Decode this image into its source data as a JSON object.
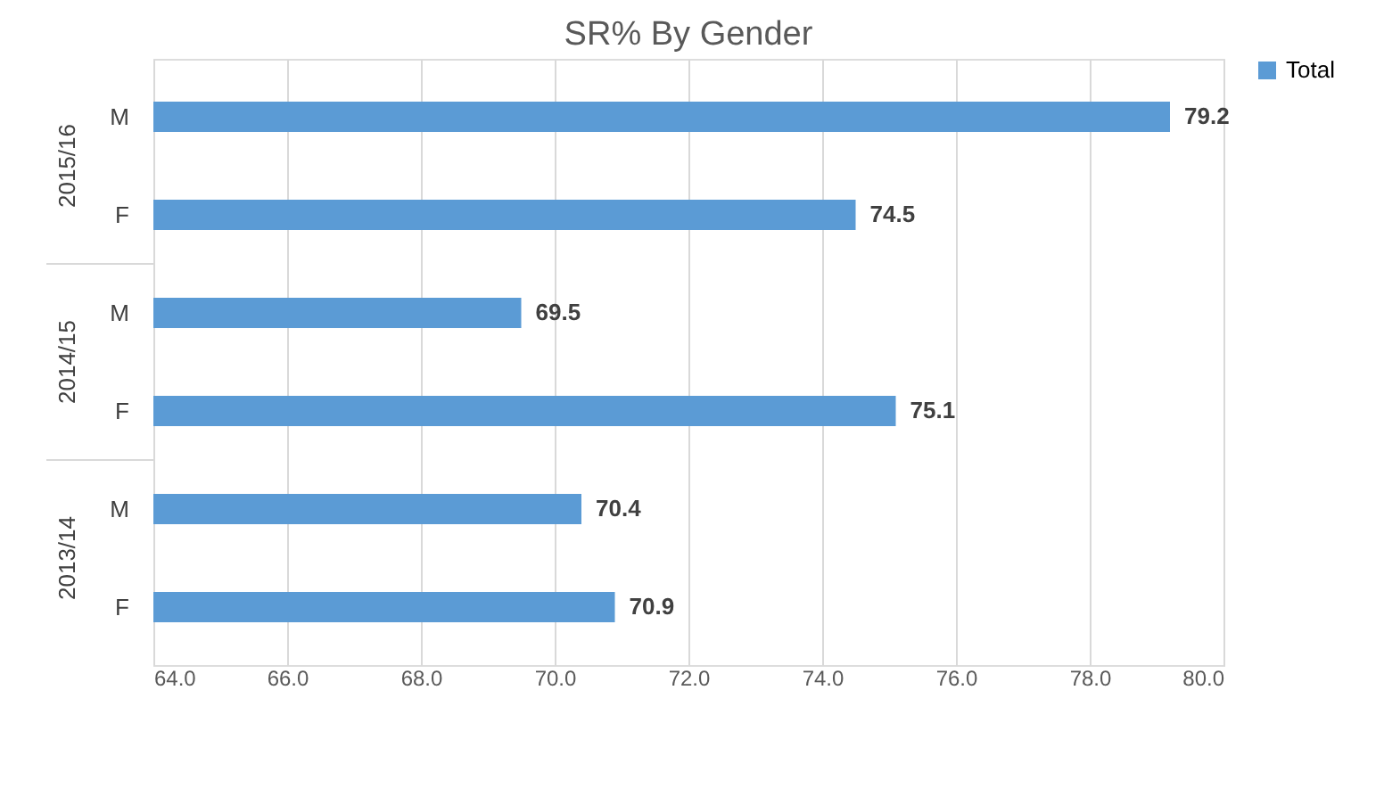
{
  "chart_data": {
    "type": "bar",
    "orientation": "horizontal",
    "title": "SR% By Gender",
    "categories": [
      "M",
      "F",
      "M",
      "F",
      "M",
      "F"
    ],
    "series": [
      {
        "name": "Total",
        "color": "#5b9bd5",
        "values": [
          79.2,
          74.5,
          69.5,
          75.1,
          70.4,
          70.9
        ]
      }
    ],
    "annotations": [
      "2015/16",
      "2014/15",
      "2013/14"
    ],
    "xlim": [
      64,
      80
    ],
    "xticks": [
      {
        "value": 64,
        "label": "64.0"
      },
      {
        "value": 66,
        "label": "66.0"
      },
      {
        "value": 68,
        "label": "68.0"
      },
      {
        "value": 70,
        "label": "70.0"
      },
      {
        "value": 72,
        "label": "72.0"
      },
      {
        "value": 74,
        "label": "74.0"
      },
      {
        "value": 76,
        "label": "76.0"
      },
      {
        "value": 78,
        "label": "78.0"
      },
      {
        "value": 80,
        "label": "80.0"
      }
    ],
    "grid": "x",
    "legend": "right",
    "data_labels": true
  }
}
